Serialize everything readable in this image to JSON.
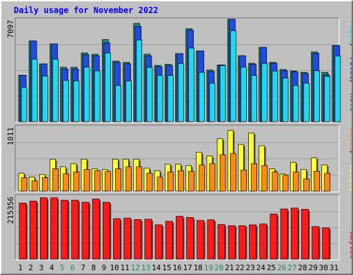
{
  "colors": {
    "background": "#c0c0c0",
    "plot_background": "#c0c0c0",
    "title": "#0000ff",
    "hits": "#1b8c6c",
    "files": "#1f4cdc",
    "pages": "#22d8f0",
    "visits": "#ffff33",
    "sites": "#ff8a1a",
    "kbytes": "#ff1a1a",
    "weekend_label": "#1b8c6c"
  },
  "chart_data": {
    "title": "Daily usage for November 2022",
    "type": "bar",
    "categories": [
      "1",
      "2",
      "3",
      "4",
      "5",
      "6",
      "7",
      "8",
      "9",
      "10",
      "11",
      "12",
      "13",
      "14",
      "15",
      "16",
      "17",
      "18",
      "19",
      "20",
      "21",
      "22",
      "23",
      "24",
      "25",
      "26",
      "27",
      "28",
      "29",
      "30",
      "31"
    ],
    "weekend_days": [
      "5",
      "6",
      "12",
      "13",
      "19",
      "20",
      "26",
      "27"
    ],
    "panels": [
      {
        "id": "top",
        "ymax_label": "7097",
        "ylim": [
          0,
          7097
        ],
        "legend": [
          "Pages",
          "Files",
          "Hits"
        ],
        "series": [
          {
            "name": "Hits",
            "values": [
              3220,
              5590,
              4000,
              5390,
              3770,
              3770,
              4770,
              4670,
              5690,
              4200,
              4110,
              6810,
              4680,
              3900,
              3970,
              4720,
              6440,
              4900,
              3580,
              3930,
              7097,
              4570,
              4050,
              5150,
              4110,
              3620,
              3510,
              3420,
              4830,
              3420,
              5280
            ]
          },
          {
            "name": "Files",
            "values": [
              3220,
              5590,
              4000,
              5390,
              3650,
              3650,
              4650,
              4570,
              5470,
              4100,
              4010,
              6600,
              4560,
              3810,
              3900,
              4720,
              6340,
              4900,
              3480,
              3930,
              7097,
              4570,
              3980,
              5150,
              4050,
              3530,
              3440,
              3330,
              4740,
              3250,
              5280
            ]
          },
          {
            "name": "Pages",
            "values": [
              2380,
              4330,
              3160,
              4330,
              2860,
              2820,
              3780,
              3520,
              4760,
              2510,
              2820,
              5660,
              3770,
              3200,
              3200,
              4040,
              5100,
              3420,
              2670,
              3880,
              6300,
              3780,
              3200,
              4040,
              3510,
              3020,
              2510,
              2670,
              3530,
              3140,
              4550
            ]
          }
        ]
      },
      {
        "id": "middle",
        "ymax_label": "1011",
        "ylim": [
          0,
          1011
        ],
        "legend": [
          "Sites",
          "Visits"
        ],
        "series": [
          {
            "name": "Visits",
            "values": [
              280,
              220,
              260,
              500,
              380,
              430,
              500,
              350,
              340,
              500,
              500,
              500,
              360,
              320,
              420,
              420,
              400,
              610,
              550,
              820,
              950,
              730,
              910,
              710,
              350,
              270,
              450,
              340,
              520,
              410,
              0
            ]
          },
          {
            "name": "Sites",
            "values": [
              210,
              160,
              210,
              350,
              270,
              300,
              340,
              320,
              310,
              350,
              380,
              380,
              280,
              220,
              300,
              320,
              310,
              410,
              430,
              570,
              590,
              330,
              430,
              400,
              300,
              250,
              300,
              190,
              310,
              280,
              0
            ]
          }
        ]
      },
      {
        "id": "bottom",
        "ymax_label": "215356",
        "ylim": [
          0,
          215356
        ],
        "legend": [
          "KBytes"
        ],
        "series": [
          {
            "name": "KBytes",
            "values": [
              191000,
              198000,
              209000,
              209000,
              201000,
              201000,
              194000,
              205000,
              194000,
              138000,
              140000,
              135000,
              136000,
              117000,
              129000,
              146000,
              142000,
              132000,
              134000,
              118000,
              114000,
              114000,
              117000,
              120000,
              154000,
              171000,
              174000,
              170000,
              111000,
              107000,
              0
            ]
          }
        ]
      }
    ]
  }
}
